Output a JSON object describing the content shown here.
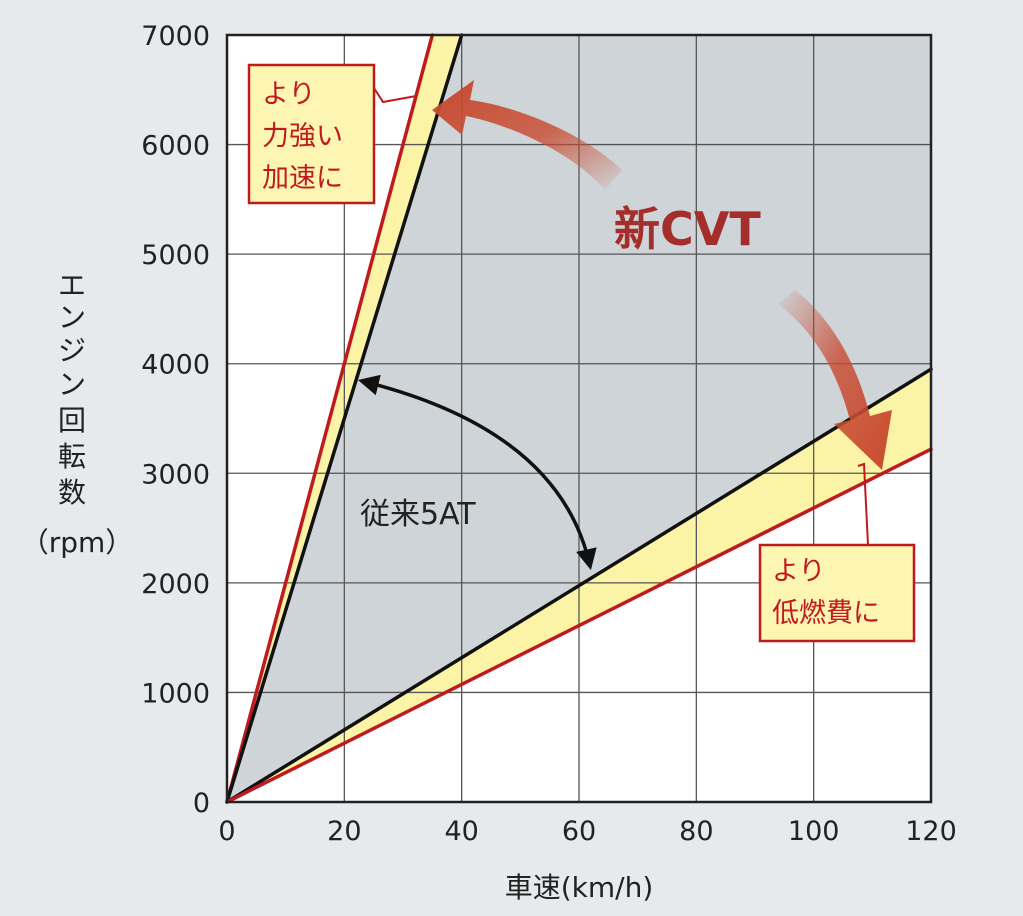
{
  "chart_data": {
    "type": "line",
    "xlabel": "車速(km/h)",
    "ylabel": [
      "エ",
      "ン",
      "ジ",
      "ン",
      "回",
      "転",
      "数",
      "（rpm）"
    ],
    "x_ticks": [
      0,
      20,
      40,
      60,
      80,
      100,
      120
    ],
    "y_ticks": [
      0,
      1000,
      2000,
      3000,
      4000,
      5000,
      6000,
      7000
    ],
    "xlim": [
      0,
      120
    ],
    "ylim": [
      0,
      7000
    ],
    "grid": true,
    "series": [
      {
        "name": "",
        "role": "cvt-low-bound",
        "color": "#c0191e",
        "x": [
          0,
          35
        ],
        "y": [
          0,
          7000
        ]
      },
      {
        "name": "",
        "role": "5at-low-gear",
        "color": "#111111",
        "x": [
          0,
          40
        ],
        "y": [
          0,
          7000
        ]
      },
      {
        "name": "",
        "role": "5at-top-gear",
        "color": "#111111",
        "x": [
          0,
          120
        ],
        "y": [
          0,
          3950
        ]
      },
      {
        "name": "",
        "role": "cvt-high-bound",
        "color": "#c0191e",
        "x": [
          0,
          120
        ],
        "y": [
          0,
          3220
        ]
      }
    ],
    "annotations": {
      "conventional": "従来5AT",
      "new_cvt": "新CVT",
      "acceleration": [
        "より",
        "力強い",
        "加速に"
      ],
      "fuel": [
        "より",
        "低燃費に"
      ]
    },
    "colors": {
      "range_fill": "#cfd4d8",
      "extension_fill": "#fbf4a6",
      "cvt_line": "#c0191e",
      "at_line": "#111111",
      "grid": "#555555",
      "background": "#e7eaec",
      "callout_border": "#c0191e",
      "callout_fill": "#fdf6b3",
      "arrow_gradient": "#c84a30"
    }
  }
}
